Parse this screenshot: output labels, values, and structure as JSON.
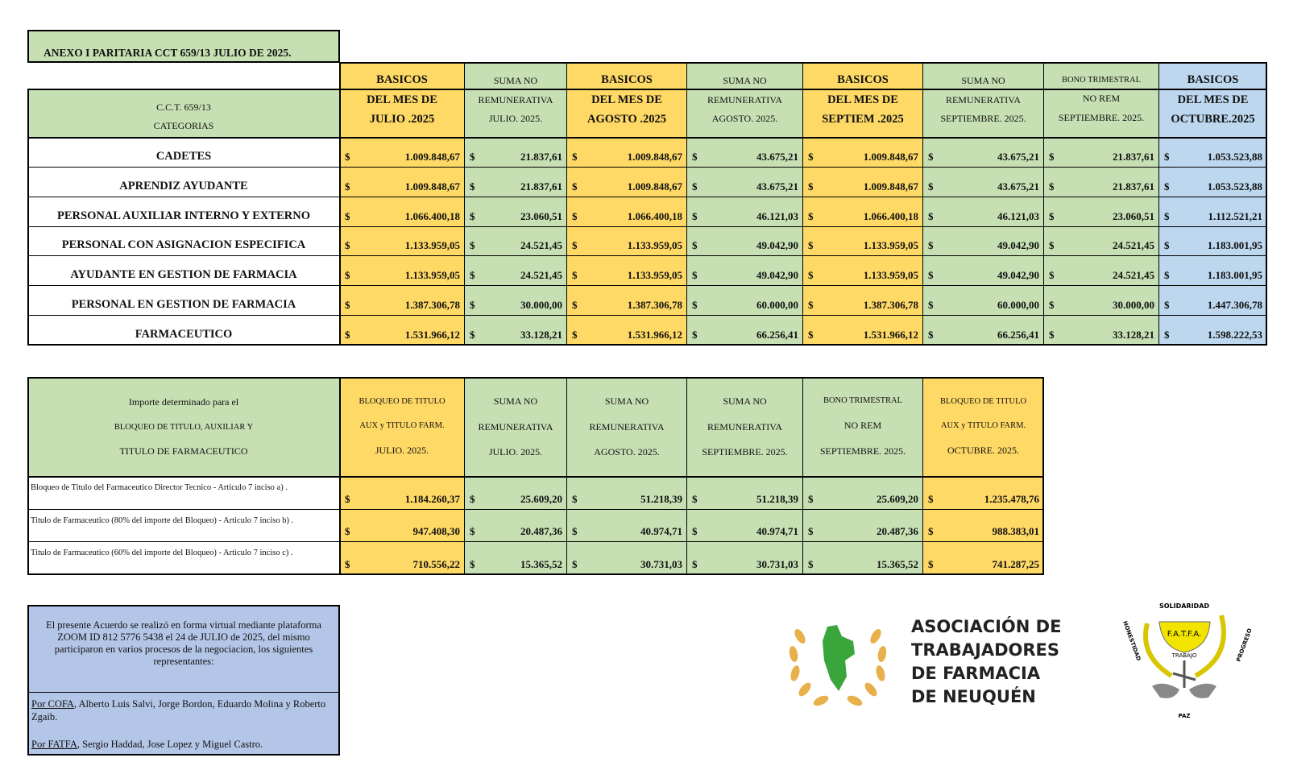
{
  "title": "ANEXO I PARITARIA CCT 659/13 JULIO DE 2025.",
  "currency": "$",
  "table1": {
    "header": [
      [
        "C.C.T.  659/13",
        "CATEGORIAS"
      ],
      [
        "BASICOS",
        "DEL MES DE",
        "JULIO .2025"
      ],
      [
        "SUMA NO",
        "REMUNERATIVA",
        "JULIO. 2025."
      ],
      [
        "BASICOS",
        "DEL MES DE",
        "AGOSTO .2025"
      ],
      [
        "SUMA NO",
        "REMUNERATIVA",
        "AGOSTO. 2025."
      ],
      [
        "BASICOS",
        "DEL MES DE",
        "SEPTIEM .2025"
      ],
      [
        "SUMA NO",
        "REMUNERATIVA",
        "SEPTIEMBRE. 2025."
      ],
      [
        "BONO TRIMESTRAL",
        "NO REM",
        "SEPTIEMBRE. 2025."
      ],
      [
        "BASICOS",
        "DEL MES DE",
        "OCTUBRE.2025"
      ]
    ],
    "rows": [
      [
        "CADETES",
        "1.009.848,67",
        "21.837,61",
        "1.009.848,67",
        "43.675,21",
        "1.009.848,67",
        "43.675,21",
        "21.837,61",
        "1.053.523,88"
      ],
      [
        "APRENDIZ AYUDANTE",
        "1.009.848,67",
        "21.837,61",
        "1.009.848,67",
        "43.675,21",
        "1.009.848,67",
        "43.675,21",
        "21.837,61",
        "1.053.523,88"
      ],
      [
        "PERSONAL AUXILIAR INTERNO Y EXTERNO",
        "1.066.400,18",
        "23.060,51",
        "1.066.400,18",
        "46.121,03",
        "1.066.400,18",
        "46.121,03",
        "23.060,51",
        "1.112.521,21"
      ],
      [
        "PERSONAL CON ASIGNACION ESPECIFICA",
        "1.133.959,05",
        "24.521,45",
        "1.133.959,05",
        "49.042,90",
        "1.133.959,05",
        "49.042,90",
        "24.521,45",
        "1.183.001,95"
      ],
      [
        "AYUDANTE EN GESTION  DE FARMACIA",
        "1.133.959,05",
        "24.521,45",
        "1.133.959,05",
        "49.042,90",
        "1.133.959,05",
        "49.042,90",
        "24.521,45",
        "1.183.001,95"
      ],
      [
        "PERSONAL EN GESTION DE FARMACIA",
        "1.387.306,78",
        "30.000,00",
        "1.387.306,78",
        "60.000,00",
        "1.387.306,78",
        "60.000,00",
        "30.000,00",
        "1.447.306,78"
      ],
      [
        "FARMACEUTICO",
        "1.531.966,12",
        "33.128,21",
        "1.531.966,12",
        "66.256,41",
        "1.531.966,12",
        "66.256,41",
        "33.128,21",
        "1.598.222,53"
      ]
    ]
  },
  "table2": {
    "header": [
      [
        "Importe determinado para el",
        "BLOQUEO  DE TITULO, AUXILIAR Y",
        "TITULO DE FARMACEUTICO"
      ],
      [
        "BLOQUEO DE TITULO",
        "AUX y TITULO FARM.",
        "JULIO. 2025."
      ],
      [
        "SUMA NO",
        "REMUNERATIVA",
        "JULIO. 2025."
      ],
      [
        "SUMA NO",
        "REMUNERATIVA",
        "AGOSTO. 2025."
      ],
      [
        "SUMA NO",
        "REMUNERATIVA",
        "SEPTIEMBRE. 2025."
      ],
      [
        "BONO TRIMESTRAL",
        "NO REM",
        "SEPTIEMBRE. 2025."
      ],
      [
        "BLOQUEO DE TITULO",
        "AUX y TITULO FARM.",
        "OCTUBRE. 2025."
      ]
    ],
    "rows": [
      [
        "Bloqueo de Titulo del Farmaceutico Director Tecnico - Articulo 7 inciso a) .",
        "1.184.260,37",
        "25.609,20",
        "51.218,39",
        "51.218,39",
        "25.609,20",
        "1.235.478,76"
      ],
      [
        "Titulo de Farmaceutico (80% del importe del Bloqueo) - Articulo 7 inciso b) .",
        "947.408,30",
        "20.487,36",
        "40.974,71",
        "40.974,71",
        "20.487,36",
        "988.383,01"
      ],
      [
        "Titulo de Farmaceutico (60% del importe del Bloqueo) - Articulo 7 inciso c) .",
        "710.556,22",
        "15.365,52",
        "30.731,03",
        "30.731,03",
        "15.365,52",
        "741.287,25"
      ]
    ]
  },
  "note": {
    "paragraph": "El presente Acuerdo se realizó en forma virtual mediante plataforma ZOOM ID 812 5776 5438  el 24 de JULIO de 2025, del mismo participaron en varios procesos de la negociacion, los siguientes representantes:",
    "cofa_label": "Por COFA",
    "cofa_text": ", Alberto Luis Salvi, Jorge Bordon, Eduardo Molina y Roberto Zgaib.",
    "fatfa_label": "Por FATFA",
    "fatfa_text": ", Sergio Haddad, Jose Lopez y Miguel Castro."
  },
  "logo_neuquen": [
    "ASOCIACIÓN DE",
    "TRABAJADORES",
    "DE FARMACIA",
    "DE NEUQUÉN"
  ],
  "logo_fatfa": {
    "name": "F.A.T.F.A.",
    "top": "SOLIDARIDAD",
    "left": "HONESTIDAD",
    "right": "PROGRESO",
    "middle": "TRABAJO",
    "bottom": "PAZ"
  }
}
